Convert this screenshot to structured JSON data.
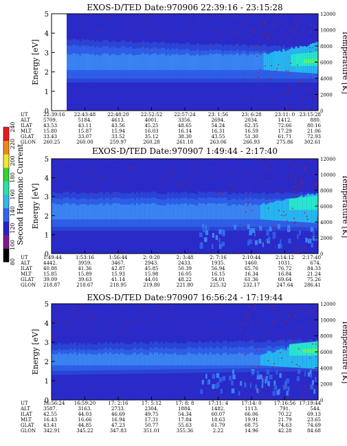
{
  "colors": {
    "background": "#2a2ac8",
    "band_levels": [
      "#2630c4",
      "#2a44d6",
      "#2f5ee6",
      "#3a84f2",
      "#26b6f0",
      "#29e6cc",
      "#5cf07a"
    ],
    "speckle": "#a0203a"
  },
  "colorbar": {
    "label": "Second Harmonic Current",
    "ticks": [
      "80",
      "100",
      "120",
      "140",
      "160",
      "180",
      "200",
      "220",
      "240"
    ],
    "colors": [
      "#000000",
      "#7a1a8c",
      "#2b20c8",
      "#2f63f0",
      "#37b6ea",
      "#2fe0a8",
      "#35d335",
      "#f0e830",
      "#ee8a1c",
      "#e81a1a"
    ]
  },
  "chart_data": [
    {
      "type": "heatmap",
      "title": "EXOS-D/TED   Date:970906  22:39:16 - 23:15:28",
      "ylabel": "Energy [eV]",
      "y2label": "Temperature [K]",
      "ylim": [
        0,
        5
      ],
      "y2lim": [
        0,
        12000
      ],
      "yticks": [
        "0",
        "1",
        "2",
        "3",
        "4",
        "5"
      ],
      "y2ticks": [
        "0",
        "2000",
        "4000",
        "6000",
        "8000",
        "10000",
        "12000"
      ],
      "row_labels": [
        "UT",
        "ALT",
        "ILAT",
        "MLT",
        "GLAT",
        "GLON"
      ],
      "columns": [
        [
          "22:39:16",
          "5709.",
          "43.53",
          "15.80",
          "33.43",
          "260.25"
        ],
        [
          "22:43:48",
          "5184.",
          "43.11",
          "15.87",
          "33.07",
          "260.00"
        ],
        [
          "22:48:20",
          "4613.",
          "43.56",
          "15.94",
          "33.52",
          "259.97"
        ],
        [
          "22:52:52",
          "4001.",
          "45.25",
          "16.03",
          "35.12",
          "260.28"
        ],
        [
          "22:57:24",
          "3356.",
          "48.65",
          "16.14",
          "38.30",
          "261.18"
        ],
        [
          "23: 1:56",
          "2694.",
          "54.24",
          "16.31",
          "43.55",
          "263.06"
        ],
        [
          "23: 6:28",
          "2034.",
          "62.35",
          "16.59",
          "51.30",
          "266.93"
        ],
        [
          "23:11: 0",
          "1412.",
          "72.66",
          "17.29",
          "61.71",
          "275.86"
        ],
        [
          "23:15:28",
          "880.",
          "80.16",
          "21.06",
          "72.93",
          "302.61"
        ]
      ]
    },
    {
      "type": "heatmap",
      "title": "EXOS-D/TED   Date:970907   1:49:44 - 2:17:40",
      "ylabel": "Energy [eV]",
      "y2label": "Temperature [K]",
      "ylim": [
        0,
        5
      ],
      "y2lim": [
        0,
        12000
      ],
      "yticks": [
        "0",
        "1",
        "2",
        "3",
        "4",
        "5"
      ],
      "y2ticks": [
        "0",
        "2000",
        "4000",
        "6000",
        "8000",
        "10000",
        "12000"
      ],
      "row_labels": [
        "UT",
        "ALT",
        "ILAT",
        "MLT",
        "GLAT",
        "GLON"
      ],
      "columns": [
        [
          "1:49:44",
          "4442.",
          "40.88",
          "15.85",
          "39.09",
          "218.87"
        ],
        [
          "1:53:16",
          "3959.",
          "41.36",
          "15.89",
          "39.63",
          "218.67"
        ],
        [
          "1:56:44",
          "3467.",
          "42.87",
          "15.93",
          "41.14",
          "218.95"
        ],
        [
          "2: 0:20",
          "2943.",
          "45.85",
          "15.98",
          "44.01",
          "219.80"
        ],
        [
          "2: 3:48",
          "2433.",
          "50.39",
          "16.05",
          "48.22",
          "221.80"
        ],
        [
          "2: 7:16",
          "1935.",
          "56.94",
          "16.15",
          "54.01",
          "225.32"
        ],
        [
          "2:10:44",
          "1460.",
          "65.76",
          "16.34",
          "61.36",
          "232.17"
        ],
        [
          "2:14:12",
          "1031.",
          "76.72",
          "16.84",
          "69.64",
          "247.64"
        ],
        [
          "2:17:40",
          "674.",
          "84.33",
          "21.24",
          "75.26",
          "286.41"
        ]
      ]
    },
    {
      "type": "heatmap",
      "title": "EXOS-D/TED   Date:970907   16:56:24 - 17:19:44",
      "ylabel": "Energy [eV]",
      "y2label": "Temperature [K]",
      "ylim": [
        0,
        5
      ],
      "y2lim": [
        0,
        12000
      ],
      "yticks": [
        "0",
        "1",
        "2",
        "3",
        "4",
        "5"
      ],
      "y2ticks": [
        "0",
        "2000",
        "4000",
        "6000",
        "8000",
        "10000",
        "12000"
      ],
      "row_labels": [
        "UT",
        "ALT",
        "ILAT",
        "MLT",
        "GLAT",
        "GLON"
      ],
      "columns": [
        [
          "16:56:24",
          "3587.",
          "42.55",
          "16.43",
          "43.41",
          "342.91"
        ],
        [
          "16:59:20",
          "3163.",
          "44.03",
          "16.66",
          "44.85",
          "345.22"
        ],
        [
          "17: 2:16",
          "2733.",
          "46.69",
          "16.94",
          "47.23",
          "347.83"
        ],
        [
          "17: 5:12",
          "2304.",
          "49.75",
          "17.31",
          "50.77",
          "351.01"
        ],
        [
          "17: 8: 8",
          "1884.",
          "54.34",
          "17.84",
          "55.63",
          "355.36"
        ],
        [
          "17:11: 4",
          "1482.",
          "60.07",
          "18.63",
          "61.79",
          "2.22"
        ],
        [
          "17:14: 0",
          "1113.",
          "66.06",
          "19.91",
          "68.75",
          "14.96"
        ],
        [
          "17:16:56",
          "791.",
          "70.22",
          "21.79",
          "74.63",
          "42.28"
        ],
        [
          "17:19:44",
          "544.",
          "69.13",
          "23.65",
          "74.69",
          "84.68"
        ]
      ]
    }
  ]
}
